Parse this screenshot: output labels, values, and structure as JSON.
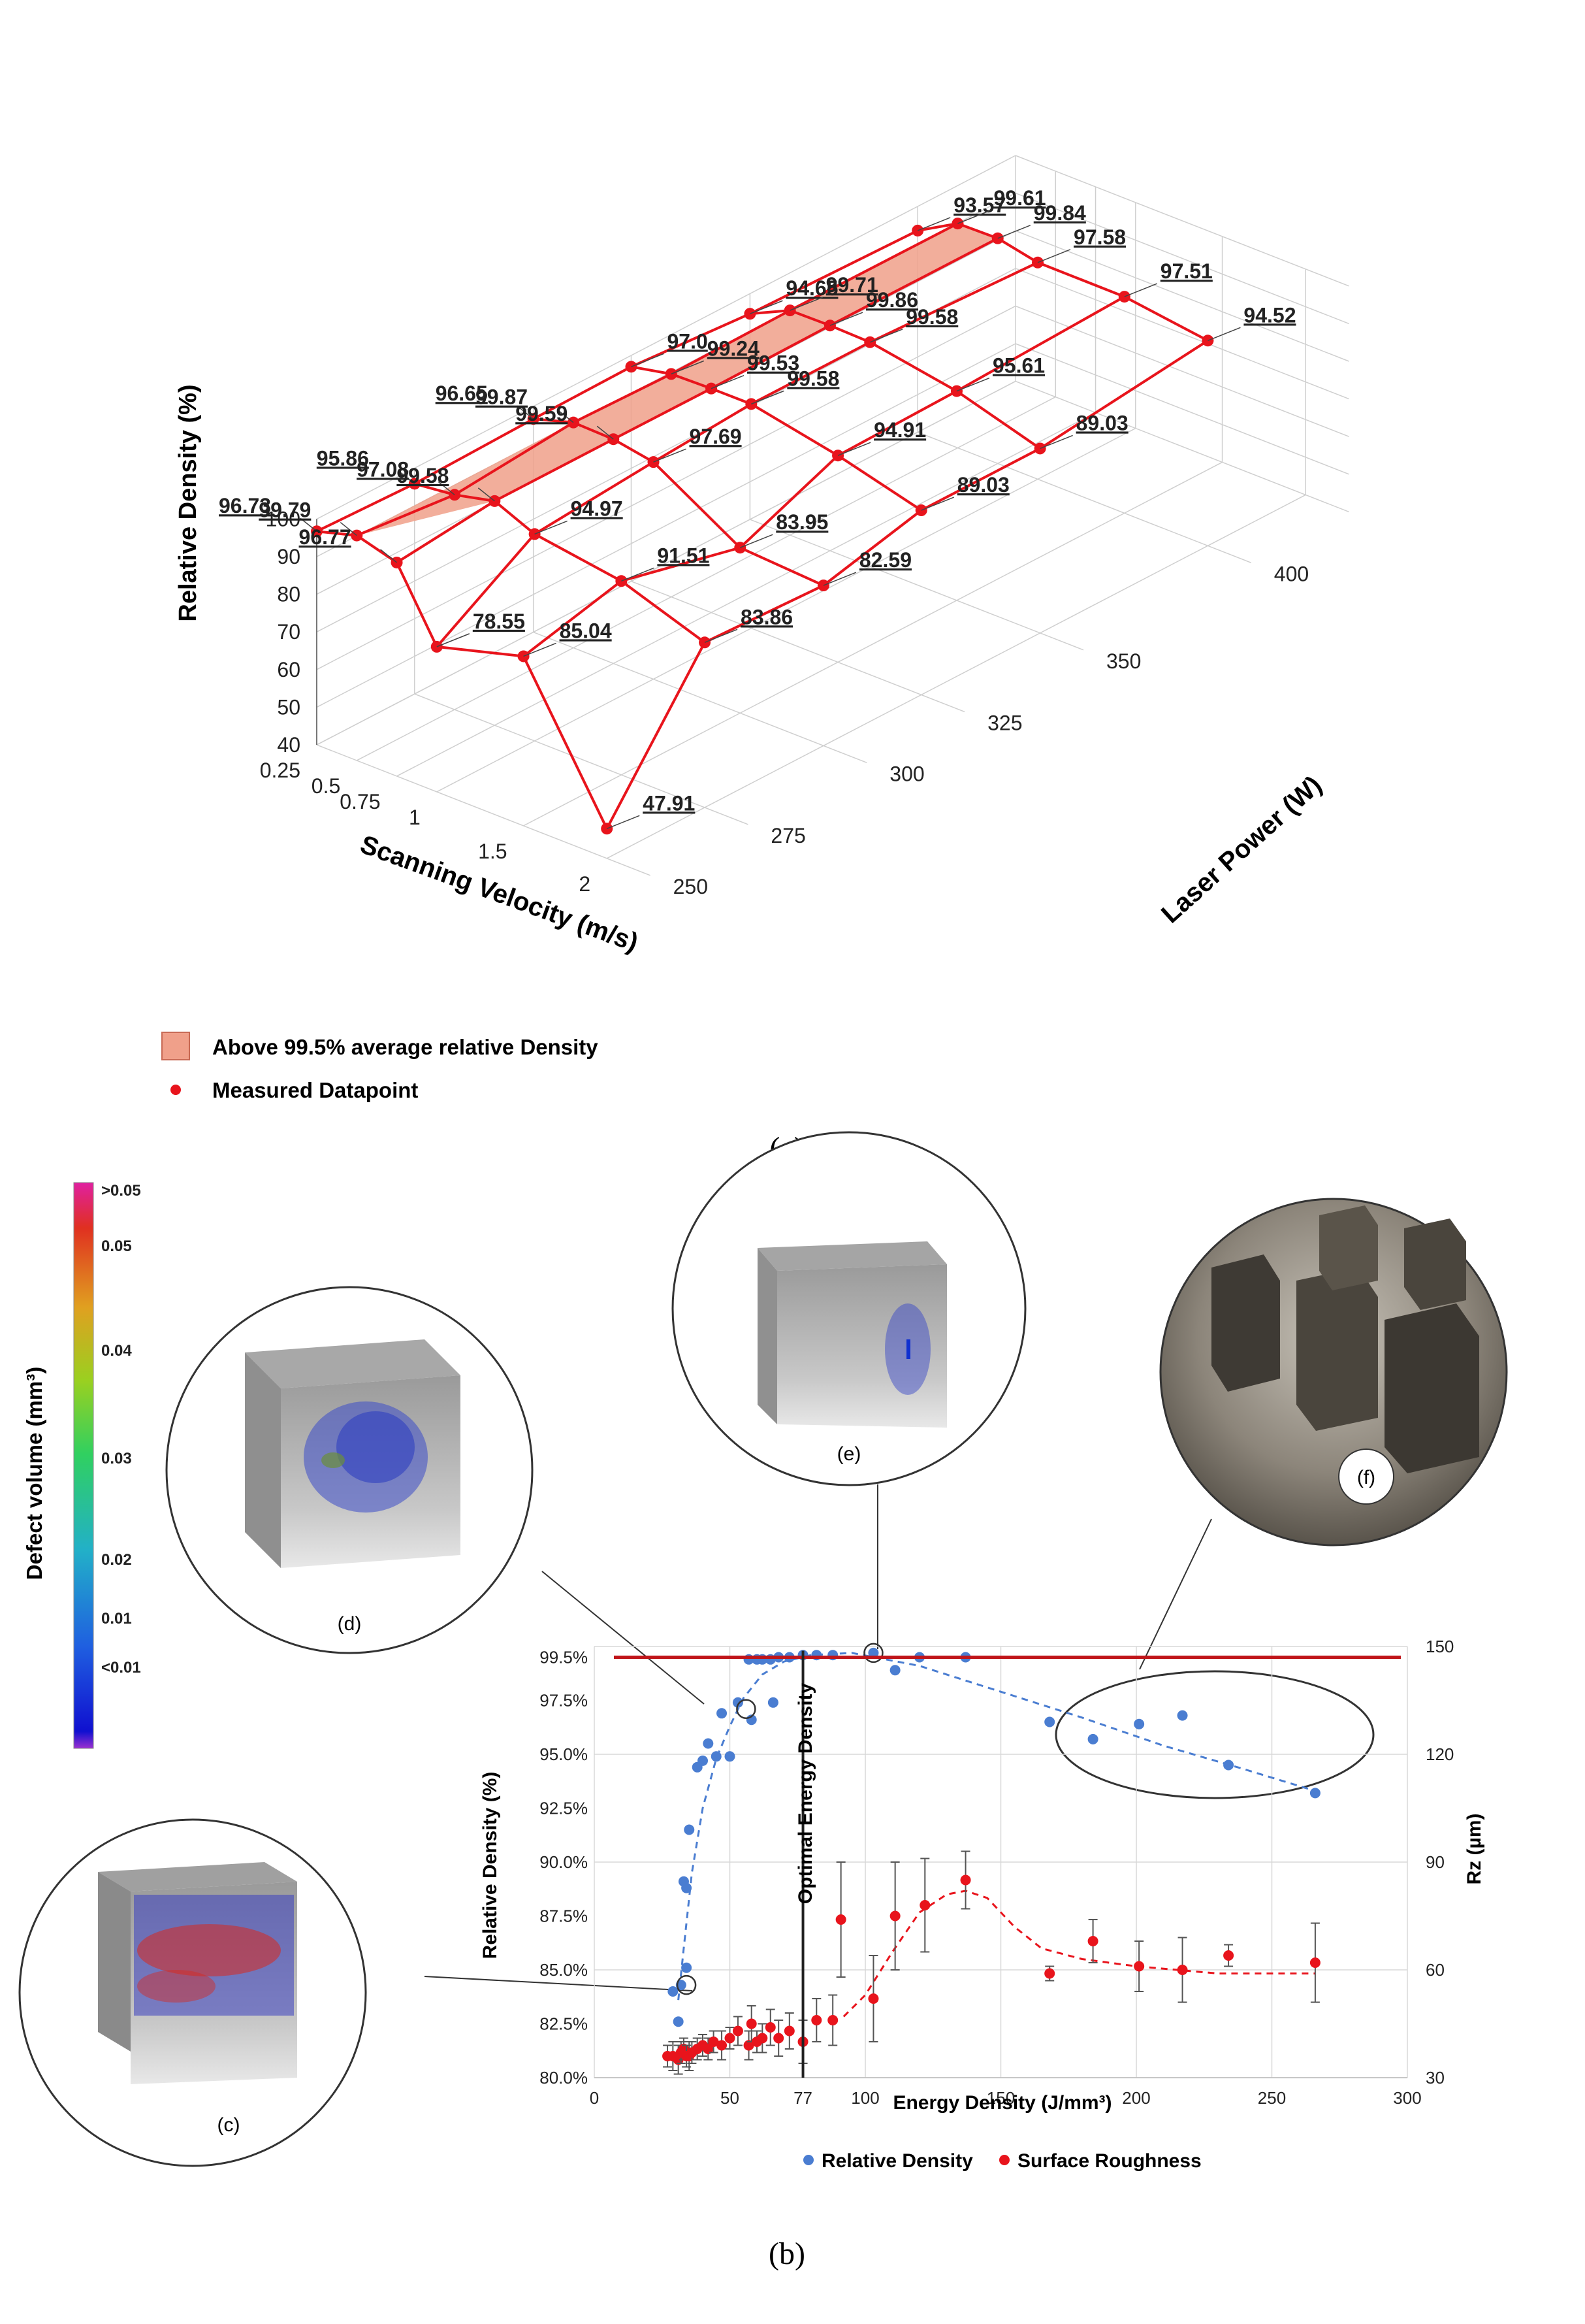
{
  "colors": {
    "red": "#e8141c",
    "blue": "#4a7dd1",
    "shade": "#f0a08a",
    "grid": "#cfcfcf",
    "axis": "#777777",
    "errbar": "#555555"
  },
  "chart_data": [
    {
      "type": "scatter",
      "view": "3d-surface",
      "panel_label": "(a)",
      "zlabel": "Relative Density (%)",
      "xlabel": "Scanning Velocity (m/s)",
      "ylabel": "Laser Power (W)",
      "zlim": [
        40,
        100
      ],
      "z_ticks": [
        "40",
        "50",
        "60",
        "70",
        "80",
        "90",
        "100"
      ],
      "x_ticks": [
        "0.25",
        "0.5",
        "0.75",
        "1",
        "1.5",
        "2"
      ],
      "y_ticks": [
        "250",
        "275",
        "300",
        "325",
        "350",
        "400"
      ],
      "legend": [
        "Above 99.5% average relative Density",
        "Measured Datapoint"
      ],
      "grid": [
        [
          "96.73",
          "95.86",
          "96.65",
          "97.0",
          "94.65",
          "93.57"
        ],
        [
          "99.79",
          "97.08",
          "99.87",
          "99.24",
          "99.71",
          "99.61"
        ],
        [
          "96.77",
          "99.58",
          "99.59",
          "99.53",
          "99.86",
          "99.84"
        ],
        [
          "78.55",
          "94.97",
          "97.69",
          "99.58",
          "99.58",
          "97.58"
        ],
        [
          "85.04",
          "91.51",
          "83.95",
          "94.91",
          "95.61",
          "97.51"
        ],
        [
          "47.91",
          "83.86",
          "82.59",
          "89.03",
          "89.03",
          "94.52"
        ]
      ]
    },
    {
      "type": "scatter",
      "panel_label": "(b)",
      "xlabel": "Energy Density (J/mm³)",
      "ylabel": "Relative Density (%)",
      "y2label": "Rz (µm)",
      "xlim": [
        0,
        300
      ],
      "ylim": [
        80,
        100
      ],
      "y2lim": [
        30,
        150
      ],
      "x_ticks": [
        "0",
        "50",
        "77",
        "100",
        "150",
        "200",
        "250",
        "300"
      ],
      "y_ticks": [
        "80.0%",
        "82.5%",
        "85.0%",
        "87.5%",
        "90.0%",
        "92.5%",
        "95.0%",
        "97.5%",
        "99.5%"
      ],
      "y2_ticks": [
        "30",
        "60",
        "90",
        "120",
        "150"
      ],
      "threshold_y": 99.5,
      "optimal_x": 77,
      "optimal_label": "Optimal Energy Density",
      "legend": [
        "Relative Density",
        "Surface Roughness"
      ],
      "series": [
        {
          "name": "Relative Density",
          "points": [
            [
              29,
              84.0
            ],
            [
              31,
              82.6
            ],
            [
              32,
              84.3
            ],
            [
              33,
              89.1
            ],
            [
              34,
              85.1
            ],
            [
              34,
              88.8
            ],
            [
              35,
              91.5
            ],
            [
              38,
              94.4
            ],
            [
              40,
              94.7
            ],
            [
              42,
              95.5
            ],
            [
              45,
              94.9
            ],
            [
              47,
              96.9
            ],
            [
              50,
              94.9
            ],
            [
              53,
              97.4
            ],
            [
              57,
              99.4
            ],
            [
              58,
              96.6
            ],
            [
              60,
              99.4
            ],
            [
              62,
              99.4
            ],
            [
              65,
              99.4
            ],
            [
              66,
              97.4
            ],
            [
              68,
              99.5
            ],
            [
              72,
              99.5
            ],
            [
              77,
              99.6
            ],
            [
              82,
              99.6
            ],
            [
              88,
              99.6
            ],
            [
              103,
              99.7
            ],
            [
              111,
              98.9
            ],
            [
              120,
              99.5
            ],
            [
              137,
              99.5
            ],
            [
              168,
              96.5
            ],
            [
              184,
              95.7
            ],
            [
              201,
              96.4
            ],
            [
              217,
              96.8
            ],
            [
              234,
              94.5
            ],
            [
              266,
              93.2
            ]
          ]
        },
        {
          "name": "Surface Roughness",
          "points": [
            [
              27,
              36,
              3
            ],
            [
              29,
              36,
              4
            ],
            [
              31,
              35,
              4
            ],
            [
              32,
              37,
              3
            ],
            [
              33,
              38,
              3
            ],
            [
              34,
              36,
              3
            ],
            [
              35,
              36,
              4
            ],
            [
              36,
              37,
              3
            ],
            [
              38,
              38,
              3
            ],
            [
              40,
              39,
              3
            ],
            [
              42,
              38,
              3
            ],
            [
              44,
              40,
              3
            ],
            [
              47,
              39,
              4
            ],
            [
              50,
              41,
              3
            ],
            [
              53,
              43,
              4
            ],
            [
              57,
              39,
              4
            ],
            [
              58,
              45,
              5
            ],
            [
              60,
              40,
              3
            ],
            [
              62,
              41,
              4
            ],
            [
              65,
              44,
              5
            ],
            [
              68,
              41,
              5
            ],
            [
              72,
              43,
              5
            ],
            [
              77,
              40,
              6
            ],
            [
              82,
              46,
              6
            ],
            [
              88,
              46,
              7
            ],
            [
              91,
              74,
              16
            ],
            [
              103,
              52,
              12
            ],
            [
              111,
              75,
              15
            ],
            [
              122,
              78,
              13
            ],
            [
              137,
              85,
              8
            ],
            [
              168,
              59,
              2
            ],
            [
              184,
              68,
              6
            ],
            [
              201,
              61,
              7
            ],
            [
              217,
              60,
              9
            ],
            [
              234,
              64,
              3
            ],
            [
              266,
              62,
              11
            ]
          ]
        }
      ],
      "fit_density": [
        [
          31,
          83.6
        ],
        [
          33,
          86.0
        ],
        [
          36,
          89.5
        ],
        [
          40,
          92.5
        ],
        [
          45,
          94.8
        ],
        [
          50,
          96.3
        ],
        [
          55,
          97.6
        ],
        [
          62,
          98.7
        ],
        [
          70,
          99.3
        ],
        [
          80,
          99.6
        ],
        [
          95,
          99.7
        ],
        [
          120,
          99.1
        ],
        [
          150,
          97.9
        ],
        [
          180,
          96.7
        ],
        [
          210,
          95.4
        ],
        [
          240,
          94.3
        ],
        [
          266,
          93.3
        ]
      ],
      "fit_roughness": [
        [
          92,
          47
        ],
        [
          100,
          53
        ],
        [
          110,
          65
        ],
        [
          120,
          76
        ],
        [
          130,
          81
        ],
        [
          137,
          82
        ],
        [
          145,
          80
        ],
        [
          155,
          72
        ],
        [
          165,
          66
        ],
        [
          180,
          63
        ],
        [
          200,
          61
        ],
        [
          230,
          59
        ],
        [
          266,
          59
        ]
      ],
      "circled_points": [
        [
          34,
          84.3
        ],
        [
          56,
          97.1
        ],
        [
          103,
          99.7
        ]
      ]
    }
  ],
  "colorbar": {
    "title": "Defect volume (mm³)",
    "labels": [
      ">0.05",
      "0.05",
      "0.04",
      "0.03",
      "0.02",
      "0.01",
      "<0.01"
    ]
  },
  "insets": {
    "c": "(c)",
    "d": "(d)",
    "e": "(e)",
    "f": "(f)"
  }
}
